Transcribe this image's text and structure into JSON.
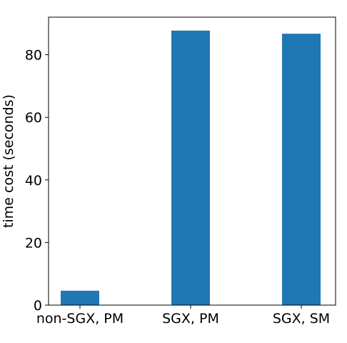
{
  "chart_data": {
    "type": "bar",
    "categories": [
      "non-SGX, PM",
      "SGX, PM",
      "SGX, SM"
    ],
    "values": [
      4.6,
      87.7,
      86.7
    ],
    "ylabel": "time cost (seconds)",
    "xlabel": "",
    "ylim": [
      0,
      92
    ],
    "yticks": [
      0,
      20,
      40,
      60,
      80
    ],
    "grid": false,
    "bar_color": "#1f77b4"
  }
}
